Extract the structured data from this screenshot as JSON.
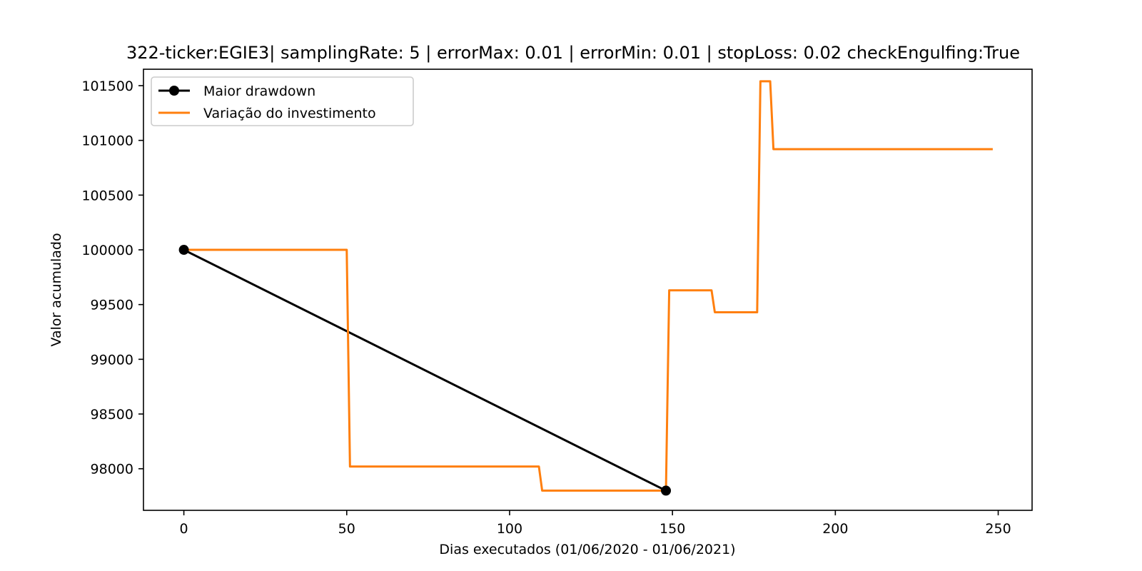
{
  "chart_data": {
    "type": "line",
    "title": "322-ticker:EGIE3| samplingRate: 5 | errorMax: 0.01 | errorMin: 0.01 | stopLoss: 0.02 checkEngulfing:True",
    "xlabel": "Dias executados (01/06/2020 - 01/06/2021)",
    "ylabel": "Valor acumulado",
    "xlim": [
      -12.4,
      260.4
    ],
    "ylim": [
      97620,
      101650
    ],
    "xticks": [
      0,
      50,
      100,
      150,
      200,
      250
    ],
    "yticks": [
      98000,
      98500,
      99000,
      99500,
      100000,
      100500,
      101000,
      101500
    ],
    "grid": false,
    "legend_position": "upper-left",
    "series": [
      {
        "name": "Maior drawdown",
        "color": "#000000",
        "marker": "circle",
        "x": [
          0,
          148
        ],
        "y": [
          100000,
          97800
        ]
      },
      {
        "name": "Variação do investimento",
        "color": "#ff7f0e",
        "marker": "none",
        "x": [
          0,
          50,
          51,
          109,
          110,
          148,
          149,
          162,
          163,
          176,
          177,
          180,
          181,
          248
        ],
        "y": [
          100000,
          100000,
          98020,
          98020,
          97800,
          97800,
          99630,
          99630,
          99430,
          99430,
          101540,
          101540,
          100920,
          100920
        ]
      }
    ]
  }
}
